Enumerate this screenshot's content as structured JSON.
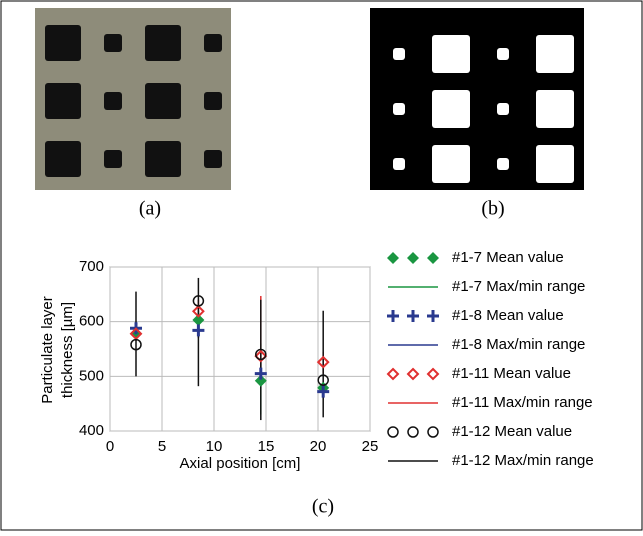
{
  "panels": {
    "a": "(a)",
    "b": "(b)",
    "c": "(c)"
  },
  "chart_data": {
    "type": "scatter",
    "xlabel": "Axial position [cm]",
    "ylabel": [
      "Particulate layer",
      "thickness [µm]"
    ],
    "x": [
      2.5,
      8.5,
      14.5,
      20.5
    ],
    "xlim": [
      0,
      25
    ],
    "xticks": [
      0,
      5,
      10,
      15,
      20,
      25
    ],
    "ylim": [
      400,
      700
    ],
    "yticks": [
      400,
      500,
      600,
      700
    ],
    "grid": true,
    "series": [
      {
        "name": "#1-7 Mean value",
        "color": "#1a9641",
        "marker": "diamond",
        "values": [
          578,
          603,
          492,
          479
        ]
      },
      {
        "name": "#1-7 Max/min range",
        "color": "#1a9641",
        "low": [
          565,
          585,
          430,
          465
        ],
        "high": [
          590,
          620,
          560,
          490
        ]
      },
      {
        "name": "#1-8 Mean value",
        "color": "#2a3a8f",
        "marker": "plus",
        "values": [
          588,
          584,
          505,
          472
        ]
      },
      {
        "name": "#1-8 Max/min range",
        "color": "#2a3a8f",
        "low": [
          575,
          570,
          480,
          460
        ],
        "high": [
          600,
          600,
          530,
          485
        ]
      },
      {
        "name": "#1-11 Mean value",
        "color": "#e03030",
        "marker": "open-diamond",
        "values": [
          578,
          619,
          537,
          526
        ]
      },
      {
        "name": "#1-11 Max/min range",
        "color": "#e03030",
        "low": [
          565,
          600,
          500,
          505
        ],
        "high": [
          590,
          640,
          647,
          545
        ]
      },
      {
        "name": "#1-12 Mean value",
        "color": "#111111",
        "marker": "open-circle",
        "values": [
          558,
          638,
          540,
          493
        ]
      },
      {
        "name": "#1-12 Max/min range",
        "color": "#111111",
        "low": [
          500,
          482,
          420,
          425
        ],
        "high": [
          655,
          680,
          640,
          620
        ]
      }
    ]
  }
}
